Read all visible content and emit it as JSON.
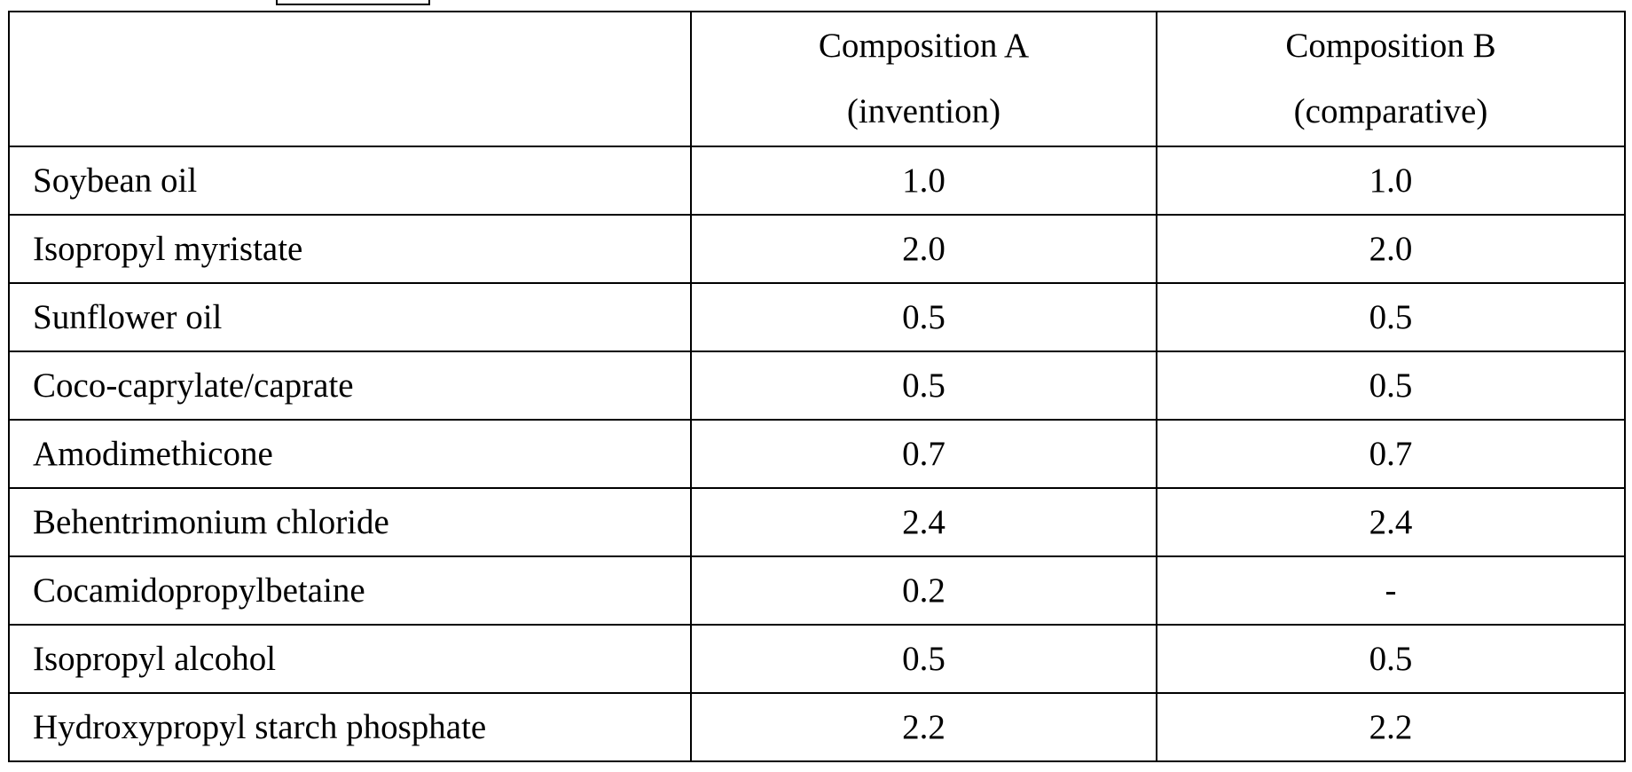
{
  "table": {
    "header": [
      [
        "Composition A",
        "(invention)"
      ],
      [
        "Composition B",
        "(comparative)"
      ]
    ],
    "rows": [
      [
        "Soybean oil",
        "1.0",
        "1.0"
      ],
      [
        "Isopropyl myristate",
        "2.0",
        "2.0"
      ],
      [
        "Sunflower oil",
        "0.5",
        "0.5"
      ],
      [
        "Coco-caprylate/caprate",
        "0.5",
        "0.5"
      ],
      [
        "Amodimethicone",
        "0.7",
        "0.7"
      ],
      [
        "Behentrimonium chloride",
        "2.4",
        "2.4"
      ],
      [
        "Cocamidopropylbetaine",
        "0.2",
        "-"
      ],
      [
        "Isopropyl alcohol",
        "0.5",
        "0.5"
      ],
      [
        "Hydroxypropyl starch phosphate",
        "2.2",
        "2.2"
      ]
    ]
  }
}
